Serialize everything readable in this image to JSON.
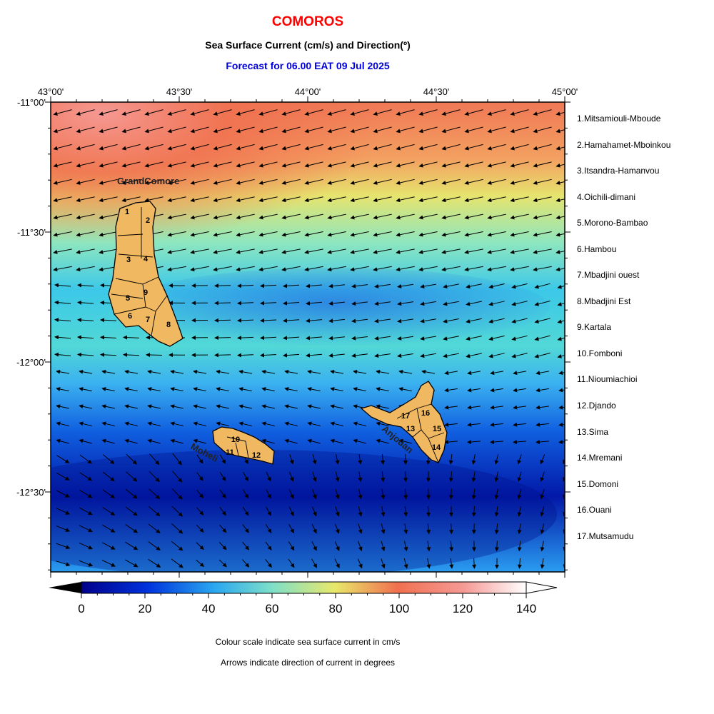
{
  "header": {
    "title": "COMOROS",
    "title_color": "#ff0000",
    "subtitle": "Sea Surface Current (cm/s) and Direction(º)",
    "forecast": "Forecast for  06.00 EAT 09 Jul 2025",
    "forecast_color": "#0000dd"
  },
  "map": {
    "lon_labels": [
      "43°00'",
      "43°30'",
      "44°00'",
      "44°30'",
      "45°00'"
    ],
    "lat_labels": [
      "-11°00'",
      "-11°30'",
      "-12°00'",
      "-12°30'"
    ],
    "islands": {
      "grand_comore": "GrandComore",
      "moheli": "Moheli",
      "anjouan": "Anjouan"
    },
    "district_numbers": [
      "1",
      "2",
      "3",
      "4",
      "5",
      "6",
      "7",
      "8",
      "9",
      "10",
      "11",
      "12",
      "13",
      "14",
      "15",
      "16",
      "17"
    ]
  },
  "districts": [
    "1.Mitsamiouli-Mboude",
    "2.Hamahamet-Mboinkou",
    "3.Itsandra-Hamanvou",
    "4.Oichili-dimani",
    "5.Morono-Bambao",
    "6.Hambou",
    "7.Mbadjini ouest",
    "8.Mbadjini Est",
    "9.Kartala",
    "10.Fomboni",
    "11.Nioumiachioi",
    "12.Djando",
    "13.Sima",
    "14.Mremani",
    "15.Domoni",
    "16.Ouani",
    "17.Mutsamudu"
  ],
  "colorbar": {
    "ticks": [
      "0",
      "20",
      "40",
      "60",
      "80",
      "100",
      "120",
      "140"
    ],
    "unit": "cm/s",
    "colors": [
      "#00008b",
      "#0033dd",
      "#2aa8f0",
      "#7fe0c8",
      "#e8e86a",
      "#f07050",
      "#f59a96",
      "#ffffff"
    ]
  },
  "notes": {
    "line1": "Colour scale indicate sea surface current in cm/s",
    "line2": "Arrows indicate direction of current in degrees"
  }
}
